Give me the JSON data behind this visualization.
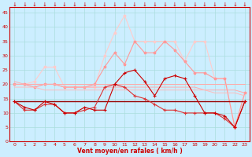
{
  "x": [
    0,
    1,
    2,
    3,
    4,
    5,
    6,
    7,
    8,
    9,
    10,
    11,
    12,
    13,
    14,
    15,
    16,
    17,
    18,
    19,
    20,
    21,
    22,
    23
  ],
  "line_rafales_light": [
    20,
    20,
    21,
    26,
    26,
    19,
    19,
    19,
    19,
    30,
    38,
    44,
    35,
    35,
    35,
    35,
    35,
    28,
    35,
    35,
    22,
    22,
    5,
    17
  ],
  "line_rafales_med": [
    20,
    20,
    19,
    20,
    20,
    19,
    19,
    19,
    20,
    26,
    31,
    27,
    35,
    31,
    31,
    35,
    32,
    28,
    24,
    24,
    22,
    22,
    5,
    17
  ],
  "line_flat1": [
    21,
    20,
    20,
    20,
    20,
    19,
    19,
    19,
    19,
    19,
    19,
    19,
    19,
    19,
    19,
    19,
    19,
    19,
    19,
    18,
    18,
    18,
    18,
    17
  ],
  "line_flat2": [
    19,
    19,
    19,
    18,
    18,
    18,
    18,
    18,
    18,
    18,
    18,
    18,
    18,
    18,
    18,
    18,
    18,
    18,
    18,
    18,
    17,
    17,
    17,
    16
  ],
  "line_flat3": [
    20,
    20,
    20,
    20,
    20,
    20,
    20,
    20,
    20,
    20,
    20,
    20,
    20,
    20,
    20,
    20,
    20,
    20,
    20,
    20,
    20,
    20,
    20,
    20
  ],
  "line_dark_flat": [
    14,
    14,
    14,
    14,
    14,
    14,
    14,
    14,
    14,
    14,
    14,
    14,
    14,
    14,
    14,
    14,
    14,
    14,
    14,
    14,
    14,
    14,
    14,
    14
  ],
  "line_vent1": [
    14,
    12,
    11,
    14,
    13,
    10,
    10,
    12,
    11,
    11,
    20,
    24,
    25,
    21,
    16,
    22,
    23,
    22,
    16,
    10,
    10,
    9,
    5,
    14
  ],
  "line_vent2": [
    14,
    11,
    11,
    13,
    13,
    10,
    10,
    11,
    12,
    19,
    20,
    19,
    16,
    15,
    13,
    11,
    11,
    10,
    10,
    10,
    10,
    8,
    5,
    14
  ],
  "color_rafales_light": "#ffcccc",
  "color_rafales_med": "#ff9999",
  "color_flat1": "#ffaaaa",
  "color_flat2": "#ffbbbb",
  "color_flat3": "#ffaaaa",
  "color_dark_flat": "#990000",
  "color_vent1": "#cc0000",
  "color_vent2": "#dd3333",
  "bg_color": "#cceeff",
  "grid_color": "#aadddd",
  "xlabel": "Vent moyen/en rafales ( km/h )",
  "ylim": [
    0,
    47
  ],
  "xlim": [
    -0.5,
    23.5
  ],
  "yticks": [
    0,
    5,
    10,
    15,
    20,
    25,
    30,
    35,
    40,
    45
  ],
  "xtick_labels": [
    "↓0",
    "↓1",
    "↓2",
    "↓3",
    "↓4",
    "↓5",
    "↓6",
    "↓7",
    "↓8",
    "↓9",
    "↓10",
    "↓11",
    "↓12",
    "↓13",
    "↓14",
    "↓15",
    "↓16",
    "↓17",
    "↓18",
    "↓19",
    "↓20",
    "↓21",
    "↓22",
    "↓23"
  ],
  "xtick_nums": [
    "0",
    "1",
    "2",
    "3",
    "4",
    "5",
    "6",
    "7",
    "8",
    "9",
    "10",
    "11",
    "12",
    "13",
    "14",
    "15",
    "16",
    "17",
    "18",
    "19",
    "20",
    "21",
    "22",
    "23"
  ]
}
